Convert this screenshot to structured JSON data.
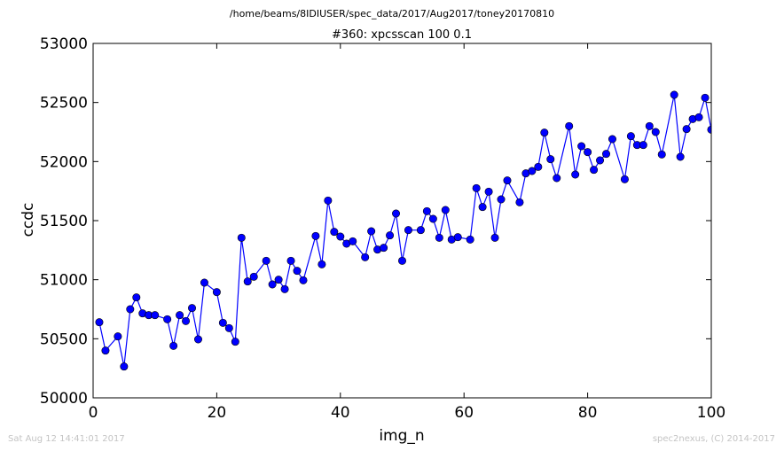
{
  "chart_data": {
    "type": "line",
    "suptitle": "/home/beams/8IDIUSER/spec_data/2017/Aug2017/toney20170810",
    "title": "#360: xpcsscan 100 0.1",
    "xlabel": "img_n",
    "ylabel": "ccdc",
    "xlim": [
      0,
      100
    ],
    "ylim": [
      50000,
      53000
    ],
    "xticks": [
      0,
      20,
      40,
      60,
      80,
      100
    ],
    "yticks": [
      50000,
      50500,
      51000,
      51500,
      52000,
      52500,
      53000
    ],
    "grid": false,
    "series": [
      {
        "color": "#0000ff",
        "marker": "circle",
        "x": [
          1,
          2,
          4,
          5,
          6,
          7,
          8,
          9,
          10,
          12,
          13,
          14,
          15,
          16,
          17,
          18,
          20,
          21,
          22,
          23,
          24,
          25,
          26,
          28,
          29,
          30,
          31,
          32,
          33,
          34,
          36,
          37,
          38,
          39,
          40,
          41,
          42,
          44,
          45,
          46,
          47,
          48,
          49,
          50,
          51,
          53,
          54,
          55,
          56,
          57,
          58,
          59,
          61,
          62,
          63,
          64,
          65,
          66,
          67,
          69,
          70,
          71,
          72,
          73,
          74,
          75,
          77,
          78,
          79,
          80,
          81,
          82,
          83,
          84,
          86,
          87,
          88,
          89,
          90,
          91,
          92,
          94,
          95,
          96,
          97,
          98,
          99,
          100
        ],
        "y": [
          50640,
          50400,
          50520,
          50265,
          50750,
          50850,
          50715,
          50700,
          50700,
          50665,
          50440,
          50700,
          50650,
          50760,
          50495,
          50975,
          50895,
          50635,
          50590,
          50475,
          51355,
          50985,
          51025,
          51160,
          50960,
          51000,
          50920,
          51160,
          51075,
          50995,
          51370,
          51130,
          51670,
          51405,
          51365,
          51305,
          51325,
          51190,
          51410,
          51255,
          51270,
          51375,
          51560,
          51160,
          51420,
          51420,
          51580,
          51515,
          51355,
          51590,
          51340,
          51360,
          51340,
          51775,
          51615,
          51745,
          51355,
          51680,
          51840,
          51655,
          51900,
          51920,
          51955,
          52245,
          52020,
          51860,
          52300,
          51890,
          52130,
          52080,
          51930,
          52010,
          52065,
          52190,
          51850,
          52215,
          52140,
          52140,
          52300,
          52250,
          52060,
          52565,
          52040,
          52275,
          52360,
          52375,
          52540,
          52270
        ]
      }
    ]
  },
  "footer": {
    "left": "Sat Aug 12 14:41:01 2017",
    "right": "spec2nexus, (C) 2014-2017"
  }
}
